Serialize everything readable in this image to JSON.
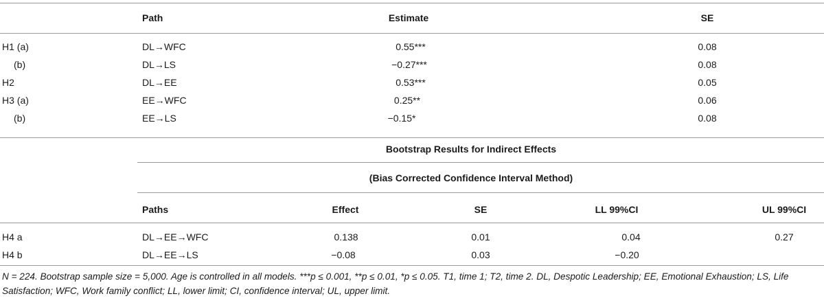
{
  "table1": {
    "headers": {
      "path": "Path",
      "estimate": "Estimate",
      "se": "SE"
    },
    "rows": [
      {
        "label": "H1 (a)",
        "path": "DL→WFC",
        "estimate": "0.55***",
        "se": "0.08"
      },
      {
        "label": "(b)",
        "path": "DL→LS",
        "estimate": "−0.27***",
        "se": "0.08"
      },
      {
        "label": "H2",
        "path": "DL→EE",
        "estimate": "0.53***",
        "se": "0.05"
      },
      {
        "label": "H3 (a)",
        "path": "EE→WFC",
        "estimate": "0.25**",
        "se": "0.06"
      },
      {
        "label": "(b)",
        "path": "EE→LS",
        "estimate": "−0.15*",
        "se": "0.08"
      }
    ]
  },
  "bootstrap": {
    "title": "Bootstrap Results for Indirect Effects",
    "subtitle": "(Bias Corrected Confidence Interval Method)",
    "headers": {
      "paths": "Paths",
      "effect": "Effect",
      "se": "SE",
      "ll": "LL 99%CI",
      "ul": "UL 99%CI"
    },
    "rows": [
      {
        "label": "H4 a",
        "path": "DL→EE→WFC",
        "effect": "0.138",
        "se": "0.01",
        "ll": "0.04",
        "ul": "0.27"
      },
      {
        "label": "H4 b",
        "path": "DL→EE→LS",
        "effect": "−0.08",
        "se": "0.03",
        "ll": "−0.20",
        "ul": ""
      }
    ]
  },
  "footnote": "N = 224. Bootstrap sample size = 5,000. Age is controlled in all models. ***p ≤ 0.001, **p ≤ 0.01, *p ≤ 0.05. T1, time 1; T2, time 2. DL, Despotic Leadership; EE, Emotional Exhaustion; LS, Life Satisfaction; WFC, Work family conflict; LL, lower limit; CI, confidence interval; UL, upper limit."
}
